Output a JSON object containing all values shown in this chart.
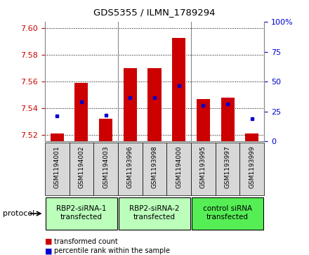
{
  "title": "GDS5355 / ILMN_1789294",
  "samples": [
    "GSM1194001",
    "GSM1194002",
    "GSM1194003",
    "GSM1193996",
    "GSM1193998",
    "GSM1194000",
    "GSM1193995",
    "GSM1193997",
    "GSM1193999"
  ],
  "red_values": [
    7.521,
    7.559,
    7.532,
    7.57,
    7.57,
    7.593,
    7.547,
    7.548,
    7.521
  ],
  "blue_values": [
    7.534,
    7.545,
    7.535,
    7.548,
    7.548,
    7.557,
    7.542,
    7.543,
    7.532
  ],
  "y_min": 7.515,
  "y_max": 7.605,
  "y_ticks_left": [
    7.52,
    7.54,
    7.56,
    7.58,
    7.6
  ],
  "y_ticks_right": [
    0,
    25,
    50,
    75,
    100
  ],
  "groups": [
    {
      "label": "RBP2-siRNA-1\ntransfected",
      "start": 0,
      "end": 3,
      "color": "#bbffbb"
    },
    {
      "label": "RBP2-siRNA-2\ntransfected",
      "start": 3,
      "end": 6,
      "color": "#bbffbb"
    },
    {
      "label": "control siRNA\ntransfected",
      "start": 6,
      "end": 9,
      "color": "#55ee55"
    }
  ],
  "bar_color": "#cc0000",
  "dot_color": "#0000cc",
  "grid_color": "#000000",
  "bar_bottom": 7.515,
  "bar_width": 0.55,
  "legend_red": "transformed count",
  "legend_blue": "percentile rank within the sample",
  "protocol_label": "protocol",
  "tick_color_left": "#cc0000",
  "tick_color_right": "#0000cc",
  "sample_box_color": "#d8d8d8",
  "separator_color": "#888888"
}
